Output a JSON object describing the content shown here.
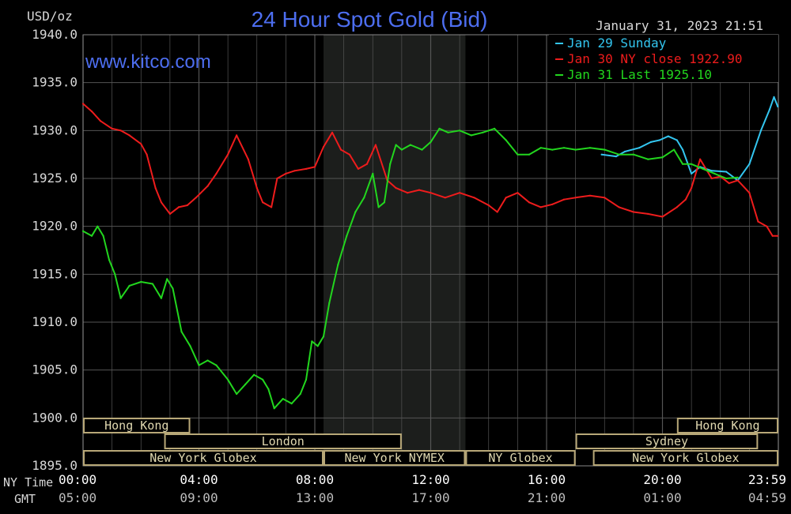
{
  "chart_data": {
    "type": "line",
    "title": "24 Hour Spot Gold (Bid)",
    "watermark": "www.kitco.com",
    "timestamp": "January 31, 2023 21:51",
    "yunit": "USD/oz",
    "ylim": [
      1895.0,
      1940.0
    ],
    "yticks": [
      "1940.0",
      "1935.0",
      "1930.0",
      "1925.0",
      "1920.0",
      "1915.0",
      "1910.0",
      "1905.0",
      "1900.0",
      "1895.0"
    ],
    "xlim": [
      0,
      24
    ],
    "xticks_ny": [
      "00:00",
      "04:00",
      "08:00",
      "12:00",
      "16:00",
      "20:00",
      "23:59"
    ],
    "xticks_gmt": [
      "05:00",
      "09:00",
      "13:00",
      "17:00",
      "21:00",
      "01:00",
      "04:59"
    ],
    "x_row_labels": {
      "ny": "NY Time",
      "gmt": "GMT"
    },
    "grid": true,
    "legend_position": "top-right",
    "colors": {
      "background": "#000000",
      "grid": "#555555",
      "session_shade": "#1c1e1c",
      "session_border": "#b8a878",
      "title": "#4d6ef0",
      "axis_text": "#d8d8d8"
    },
    "series": [
      {
        "name": "Jan 29 Sunday",
        "color": "#33c6f0",
        "x": [
          17.9,
          18.4,
          18.7,
          19.2,
          19.6,
          19.9,
          20.2,
          20.5,
          20.7,
          21.0,
          21.3,
          21.7,
          22.2,
          22.6,
          23.0,
          23.4,
          23.7,
          23.85,
          23.98
        ],
        "y": [
          1927.5,
          1927.3,
          1927.8,
          1928.2,
          1928.8,
          1929.0,
          1929.4,
          1929.0,
          1928.0,
          1925.5,
          1926.2,
          1925.8,
          1925.7,
          1924.8,
          1926.5,
          1930.0,
          1932.2,
          1933.5,
          1932.5
        ]
      },
      {
        "name": "Jan 30 NY close 1922.90",
        "color": "#ee1c1c",
        "x": [
          0.0,
          0.3,
          0.6,
          1.0,
          1.3,
          1.6,
          2.0,
          2.2,
          2.5,
          2.7,
          3.0,
          3.3,
          3.6,
          3.9,
          4.3,
          4.6,
          5.0,
          5.3,
          5.7,
          6.0,
          6.2,
          6.5,
          6.7,
          7.0,
          7.3,
          7.7,
          8.0,
          8.3,
          8.6,
          8.9,
          9.2,
          9.5,
          9.8,
          10.1,
          10.5,
          10.8,
          11.2,
          11.6,
          12.0,
          12.5,
          13.0,
          13.5,
          14.0,
          14.3,
          14.6,
          15.0,
          15.4,
          15.8,
          16.2,
          16.6,
          17.0,
          17.5,
          18.0,
          18.5,
          19.0,
          19.5,
          20.0,
          20.5,
          20.8,
          21.0,
          21.3,
          21.7,
          22.0,
          22.3,
          22.6,
          23.0,
          23.3,
          23.6,
          23.8,
          23.98
        ],
        "y": [
          1932.8,
          1932.0,
          1931.0,
          1930.2,
          1930.0,
          1929.5,
          1928.6,
          1927.5,
          1924.0,
          1922.5,
          1921.3,
          1922.0,
          1922.2,
          1923.0,
          1924.2,
          1925.5,
          1927.5,
          1929.5,
          1927.0,
          1924.0,
          1922.5,
          1922.0,
          1925.0,
          1925.5,
          1925.8,
          1926.0,
          1926.2,
          1928.3,
          1929.8,
          1928.0,
          1927.5,
          1926.0,
          1926.5,
          1928.5,
          1924.8,
          1924.0,
          1923.5,
          1923.8,
          1923.5,
          1923.0,
          1923.5,
          1923.0,
          1922.2,
          1921.5,
          1923.0,
          1923.5,
          1922.5,
          1922.0,
          1922.3,
          1922.8,
          1923.0,
          1923.2,
          1923.0,
          1922.0,
          1921.5,
          1921.3,
          1921.0,
          1922.0,
          1922.8,
          1924.0,
          1927.0,
          1925.0,
          1925.2,
          1924.5,
          1924.8,
          1923.5,
          1920.5,
          1920.0,
          1919.0,
          1919.0
        ]
      },
      {
        "name": "Jan 31 Last 1925.10",
        "color": "#22d61e",
        "x": [
          0.0,
          0.3,
          0.5,
          0.7,
          0.9,
          1.1,
          1.3,
          1.6,
          2.0,
          2.4,
          2.7,
          2.9,
          3.1,
          3.4,
          3.7,
          4.0,
          4.3,
          4.6,
          5.0,
          5.3,
          5.6,
          5.9,
          6.2,
          6.4,
          6.6,
          6.9,
          7.2,
          7.5,
          7.7,
          7.9,
          8.1,
          8.3,
          8.5,
          8.8,
          9.1,
          9.4,
          9.7,
          10.0,
          10.2,
          10.4,
          10.6,
          10.8,
          11.0,
          11.3,
          11.7,
          12.0,
          12.3,
          12.6,
          13.0,
          13.4,
          13.8,
          14.2,
          14.6,
          15.0,
          15.4,
          15.8,
          16.2,
          16.6,
          17.0,
          17.5,
          18.0,
          18.5,
          19.0,
          19.5,
          20.0,
          20.4,
          20.7,
          21.0,
          21.4,
          21.8,
          22.2,
          22.6
        ],
        "y": [
          1919.5,
          1919.0,
          1920.0,
          1919.0,
          1916.5,
          1915.0,
          1912.5,
          1913.8,
          1914.2,
          1914.0,
          1912.5,
          1914.5,
          1913.5,
          1909.0,
          1907.5,
          1905.5,
          1906.0,
          1905.5,
          1904.0,
          1902.5,
          1903.5,
          1904.5,
          1904.0,
          1903.0,
          1901.0,
          1902.0,
          1901.5,
          1902.5,
          1904.0,
          1908.0,
          1907.5,
          1908.5,
          1912.0,
          1916.0,
          1919.0,
          1921.5,
          1923.0,
          1925.5,
          1922.0,
          1922.5,
          1926.5,
          1928.5,
          1928.0,
          1928.5,
          1928.0,
          1928.8,
          1930.2,
          1929.8,
          1930.0,
          1929.5,
          1929.8,
          1930.2,
          1929.0,
          1927.5,
          1927.5,
          1928.2,
          1928.0,
          1928.2,
          1928.0,
          1928.2,
          1928.0,
          1927.5,
          1927.5,
          1927.0,
          1927.2,
          1928.0,
          1926.5,
          1926.5,
          1926.0,
          1925.5,
          1925.0,
          1925.1
        ]
      }
    ],
    "sessions": {
      "row1": [
        {
          "label": "Hong Kong",
          "start": 0.0,
          "end": 3.7
        },
        {
          "label": "Hong Kong",
          "start": 20.5,
          "end": 24.0
        }
      ],
      "row2": [
        {
          "label": "London",
          "start": 2.8,
          "end": 11.0
        },
        {
          "label": "Sydney",
          "start": 17.0,
          "end": 23.3
        }
      ],
      "row3": [
        {
          "label": "New York Globex",
          "start": 0.0,
          "end": 8.3
        },
        {
          "label": "New York NYMEX",
          "start": 8.3,
          "end": 13.2
        },
        {
          "label": "NY Globex",
          "start": 13.2,
          "end": 17.0
        },
        {
          "label": "New York Globex",
          "start": 17.6,
          "end": 24.0
        }
      ],
      "shaded_range": [
        8.3,
        13.2
      ]
    }
  }
}
